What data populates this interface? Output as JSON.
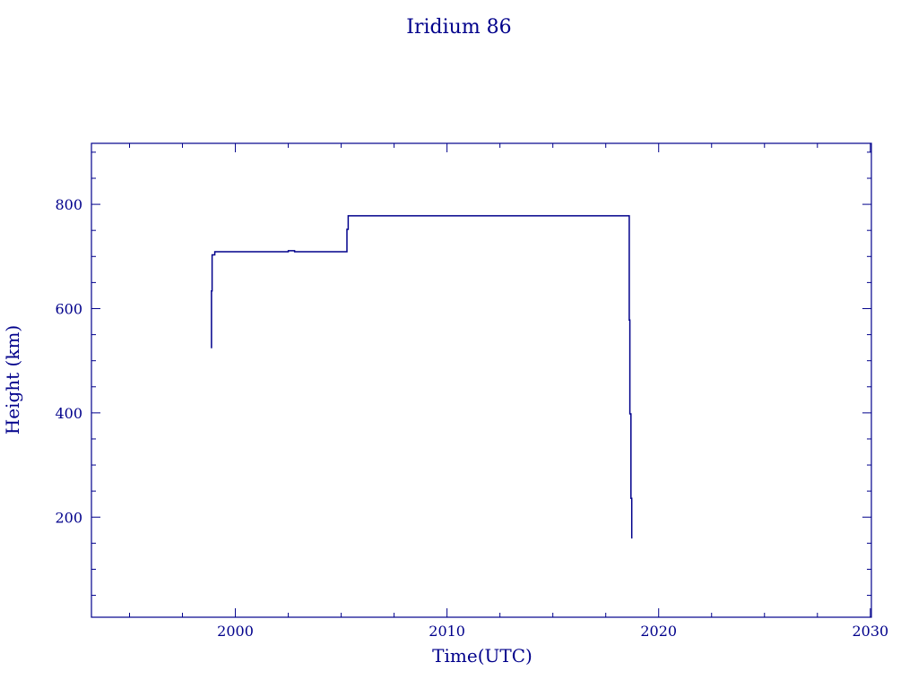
{
  "chart_data": {
    "type": "line",
    "title": "Iridium 86",
    "xlabel": "Time(UTC)",
    "ylabel": "Height (km)",
    "xlim": [
      1993.2,
      2030.05
    ],
    "ylim": [
      8,
      917
    ],
    "xticks": [
      2000,
      2010,
      2020,
      2030
    ],
    "yticks": [
      200,
      400,
      600,
      800
    ],
    "grid": false,
    "color": "#00008b",
    "series": [
      {
        "points": [
          [
            1998.87,
            524
          ],
          [
            1998.87,
            634
          ],
          [
            1998.9,
            634
          ],
          [
            1998.9,
            703
          ],
          [
            1999.03,
            703
          ],
          [
            1999.03,
            709
          ],
          [
            2002.5,
            709
          ],
          [
            2002.5,
            711
          ],
          [
            2002.8,
            711
          ],
          [
            2002.8,
            709
          ],
          [
            2005.27,
            709
          ],
          [
            2005.27,
            752
          ],
          [
            2005.33,
            752
          ],
          [
            2005.33,
            778
          ],
          [
            2018.61,
            778
          ],
          [
            2018.61,
            578
          ],
          [
            2018.64,
            578
          ],
          [
            2018.64,
            398
          ],
          [
            2018.69,
            398
          ],
          [
            2018.69,
            236
          ],
          [
            2018.73,
            236
          ],
          [
            2018.73,
            159
          ]
        ]
      }
    ]
  }
}
